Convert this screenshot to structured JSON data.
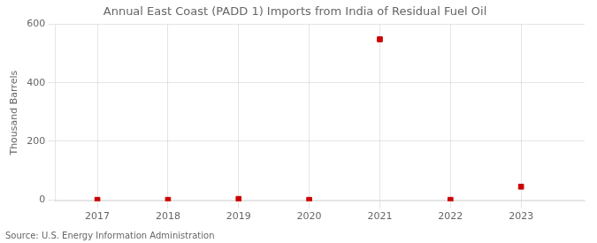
{
  "chart_data": {
    "type": "scatter",
    "title": "Annual East Coast (PADD 1) Imports from India of Residual Fuel Oil",
    "ylabel": "Thousand Barrels",
    "annotations": [
      "Source: U.S. Energy Information Administration"
    ],
    "x": [
      2017,
      2018,
      2019,
      2020,
      2021,
      2022,
      2023
    ],
    "values": [
      0,
      0,
      3,
      0,
      549,
      0,
      45
    ],
    "color": "#cc0000",
    "marker": "square",
    "xlim": [
      2016.4,
      2023.9
    ],
    "xticks": [
      2017,
      2018,
      2019,
      2020,
      2021,
      2022,
      2023
    ],
    "ylim": [
      -5,
      600
    ],
    "yticks": [
      0,
      200,
      400,
      600
    ],
    "grid": true
  }
}
